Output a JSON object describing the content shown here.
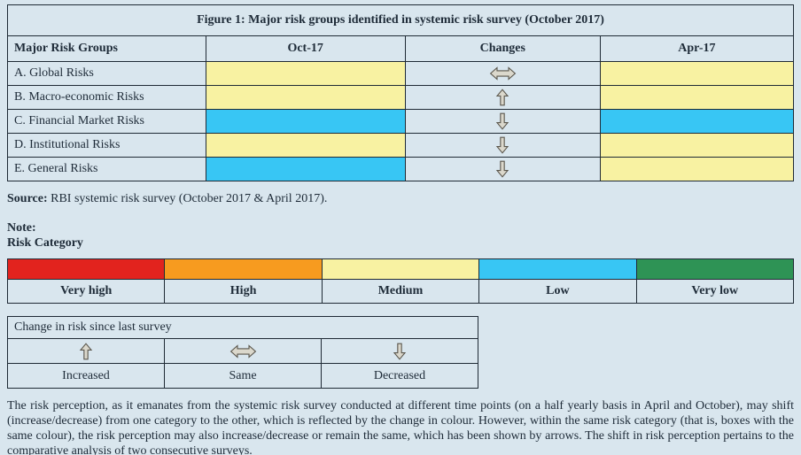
{
  "colors": {
    "background": "#d9e6ee",
    "table_border": "#1f2a35",
    "text": "#1e2b38",
    "arrow_fill": "#dbd8cc",
    "arrow_stroke": "#5b574d"
  },
  "risk_colors": {
    "very_high": "#e2231e",
    "high": "#f79b1f",
    "medium": "#f8f2a2",
    "low": "#38c6f4",
    "very_low": "#2e9355"
  },
  "main_table": {
    "title": "Figure 1: Major risk groups identified in systemic risk survey (October 2017)",
    "headers": [
      "Major Risk Groups",
      "Oct-17",
      "Changes",
      "Apr-17"
    ],
    "rows": [
      {
        "label": "A. Global Risks",
        "oct17": "medium",
        "change": "same",
        "apr17": "medium"
      },
      {
        "label": "B. Macro-economic Risks",
        "oct17": "medium",
        "change": "increased",
        "apr17": "medium"
      },
      {
        "label": "C. Financial Market Risks",
        "oct17": "low",
        "change": "decreased",
        "apr17": "low"
      },
      {
        "label": "D. Institutional Risks",
        "oct17": "medium",
        "change": "decreased",
        "apr17": "medium"
      },
      {
        "label": "E. General Risks",
        "oct17": "low",
        "change": "decreased",
        "apr17": "medium"
      }
    ]
  },
  "source": {
    "label": "Source:",
    "text": " RBI systemic risk survey (October 2017 & April 2017)."
  },
  "note": {
    "label": "Note:",
    "risk_category_label": "Risk Category"
  },
  "risk_legend": {
    "categories": [
      {
        "label": "Very high",
        "color_key": "very_high"
      },
      {
        "label": "High",
        "color_key": "high"
      },
      {
        "label": "Medium",
        "color_key": "medium"
      },
      {
        "label": "Low",
        "color_key": "low"
      },
      {
        "label": "Very low",
        "color_key": "very_low"
      }
    ]
  },
  "change_legend": {
    "title": "Change in risk since last survey",
    "items": [
      {
        "label": "Increased",
        "arrow": "increased"
      },
      {
        "label": "Same",
        "arrow": "same"
      },
      {
        "label": "Decreased",
        "arrow": "decreased"
      }
    ]
  },
  "footnote": "The risk perception, as it emanates from the systemic risk survey conducted at different time points (on a half yearly basis in April and October), may shift (increase/decrease) from one category to the other, which is reflected by the change in colour. However, within the same risk category (that is, boxes with the same colour), the risk perception may also increase/decrease or remain the same, which has been shown by arrows. The shift in risk perception pertains to the comparative analysis of two consecutive surveys."
}
